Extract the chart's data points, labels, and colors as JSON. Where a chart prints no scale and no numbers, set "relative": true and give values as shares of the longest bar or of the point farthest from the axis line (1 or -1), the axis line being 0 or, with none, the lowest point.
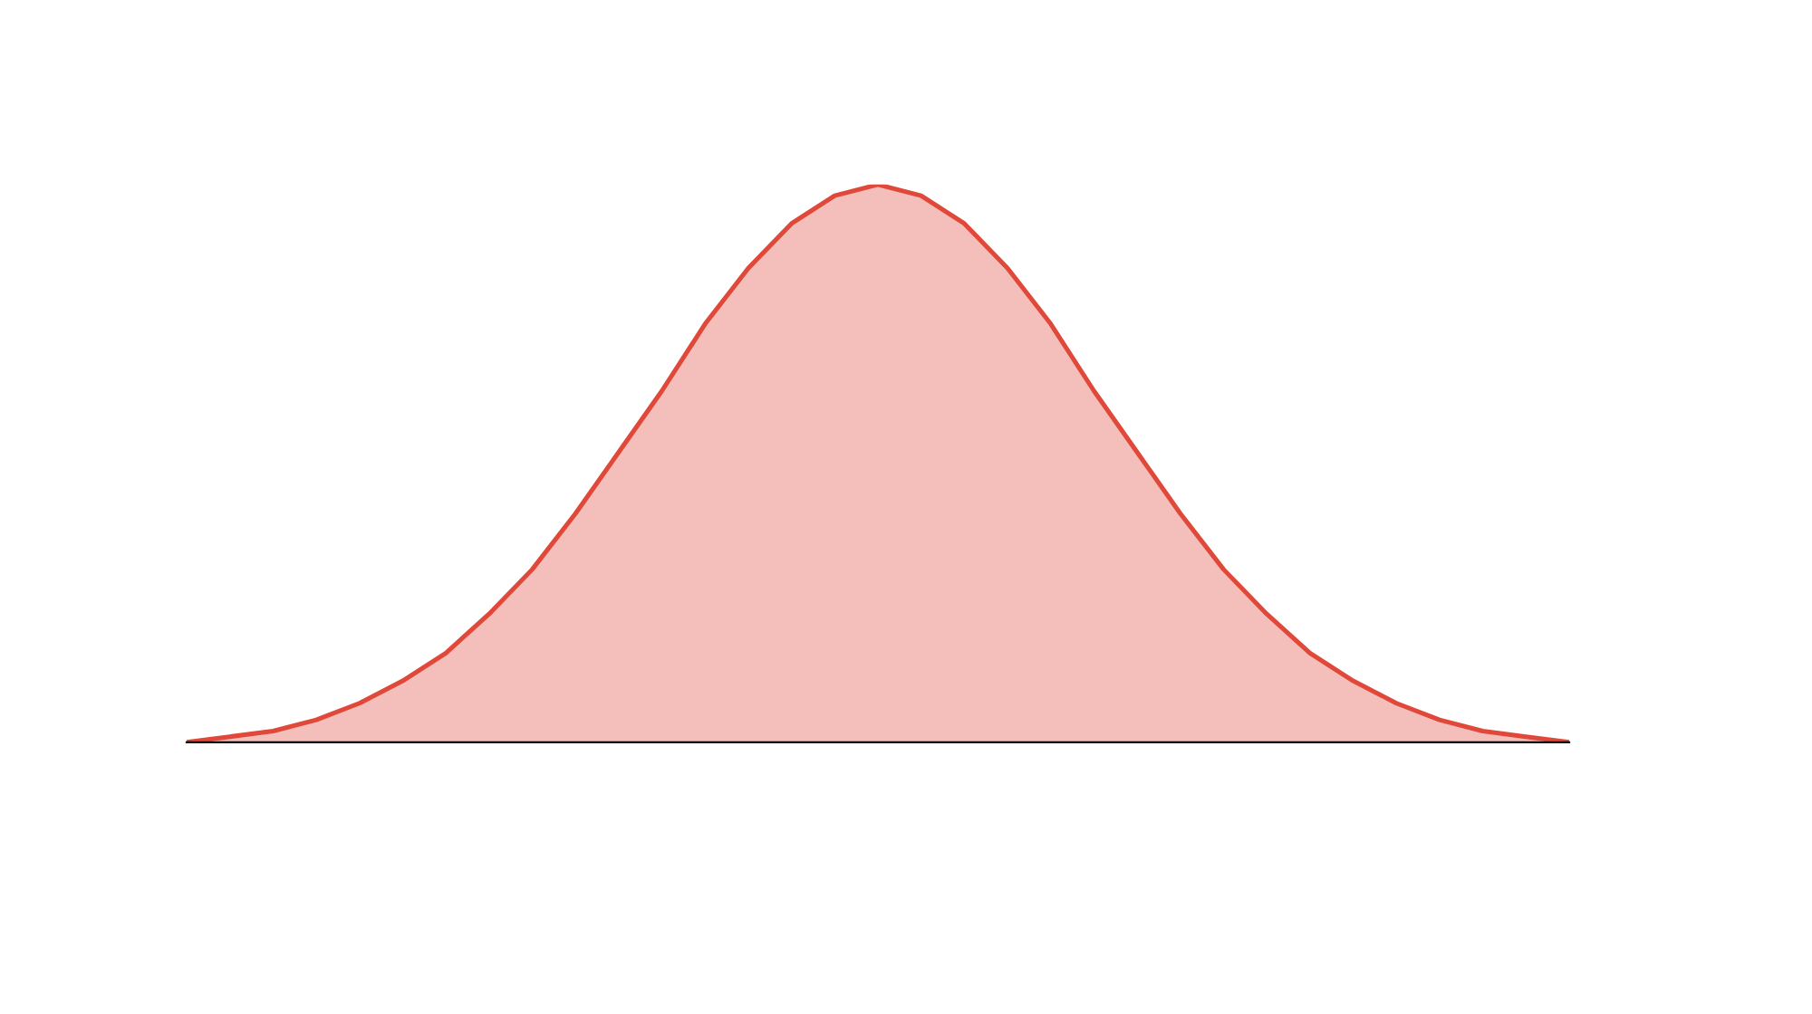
{
  "chart_data": {
    "type": "area",
    "relative": true,
    "categories": [
      null,
      null,
      null,
      null,
      null,
      null,
      null,
      null,
      null,
      null,
      null,
      null,
      null,
      null,
      null,
      null,
      null,
      null,
      null,
      null,
      null,
      null,
      null,
      null,
      null,
      null,
      null,
      null,
      null,
      null,
      null,
      null,
      null
    ],
    "series": [
      {
        "color": "#e0483a",
        "values": [
          0,
          0.01,
          0.02,
          0.04,
          0.07,
          0.11,
          0.16,
          0.23,
          0.31,
          0.41,
          0.52,
          0.63,
          0.75,
          0.85,
          0.93,
          0.98,
          1,
          0.98,
          0.93,
          0.85,
          0.75,
          0.63,
          0.52,
          0.41,
          0.31,
          0.23,
          0.16,
          0.11,
          0.07,
          0.04,
          0.02,
          0.01,
          0
        ]
      }
    ],
    "grid": false,
    "legend": false
  }
}
